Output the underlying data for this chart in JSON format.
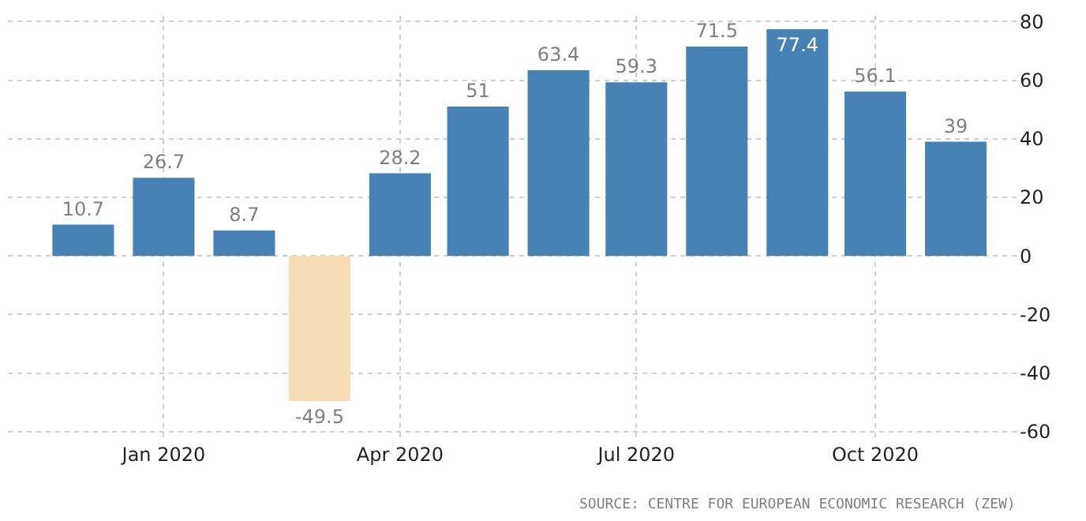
{
  "chart_data": {
    "type": "bar",
    "x": [
      "2019-12",
      "2020-01",
      "2020-02",
      "2020-03",
      "2020-04",
      "2020-05",
      "2020-06",
      "2020-07",
      "2020-08",
      "2020-09",
      "2020-10",
      "2020-11"
    ],
    "values": [
      10.7,
      26.7,
      8.7,
      -49.5,
      28.2,
      51,
      63.4,
      59.3,
      71.5,
      77.4,
      56.1,
      39
    ],
    "colors": [
      "#4682b4",
      "#4682b4",
      "#4682b4",
      "#f5deb3",
      "#4682b4",
      "#4682b4",
      "#4682b4",
      "#4682b4",
      "#4682b4",
      "#4682b4",
      "#4682b4",
      "#4682b4"
    ],
    "data_labels": true,
    "xlim": [
      "2019-11-02",
      "2020-11-25"
    ],
    "xticks": [
      {
        "value": "2020-01",
        "label": "Jan 2020"
      },
      {
        "value": "2020-04",
        "label": "Apr 2020"
      },
      {
        "value": "2020-07",
        "label": "Jul 2020"
      },
      {
        "value": "2020-10",
        "label": "Oct 2020"
      }
    ],
    "ylim": [
      -63,
      82
    ],
    "yticks": [
      -60,
      -40,
      -20,
      0,
      20,
      40,
      60,
      80
    ],
    "grid": true,
    "annotations": [
      "SOURCE: CENTRE FOR EUROPEAN ECONOMIC RESEARCH (ZEW)"
    ]
  }
}
